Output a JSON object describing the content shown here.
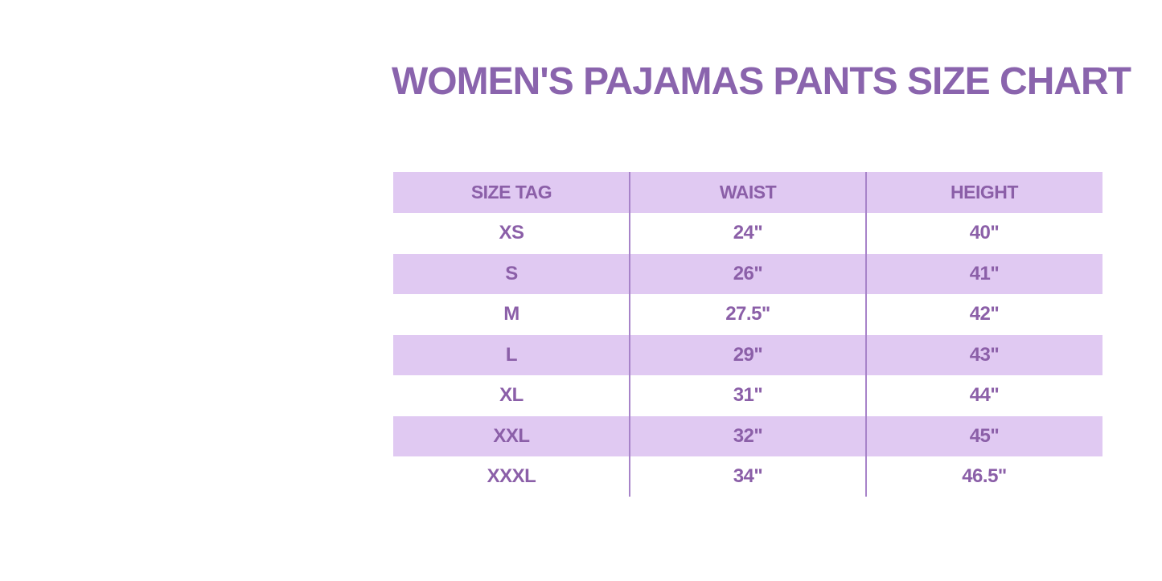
{
  "title": "WOMEN'S PAJAMAS PANTS SIZE CHART",
  "colors": {
    "title_purple": "#8a64ad",
    "cell_text_purple": "#8b5fa8",
    "row_lavender": "#e0c9f2",
    "divider_purple": "#a783c9",
    "background": "#ffffff"
  },
  "table": {
    "headers": [
      "SIZE TAG",
      "WAIST",
      "HEIGHT"
    ],
    "rows": [
      {
        "size": "XS",
        "waist": "24\"",
        "height": "40\""
      },
      {
        "size": "S",
        "waist": "26\"",
        "height": "41\""
      },
      {
        "size": "M",
        "waist": "27.5\"",
        "height": "42\""
      },
      {
        "size": "L",
        "waist": "29\"",
        "height": "43\""
      },
      {
        "size": "XL",
        "waist": "31\"",
        "height": "44\""
      },
      {
        "size": "XXL",
        "waist": "32\"",
        "height": "45\""
      },
      {
        "size": "XXXL",
        "waist": "34\"",
        "height": "46.5\""
      }
    ]
  },
  "chart_data": {
    "type": "table",
    "title": "WOMEN'S PAJAMAS PANTS SIZE CHART",
    "columns": [
      "SIZE TAG",
      "WAIST",
      "HEIGHT"
    ],
    "rows": [
      [
        "XS",
        "24\"",
        "40\""
      ],
      [
        "S",
        "26\"",
        "41\""
      ],
      [
        "M",
        "27.5\"",
        "42\""
      ],
      [
        "L",
        "29\"",
        "43\""
      ],
      [
        "XL",
        "31\"",
        "44\""
      ],
      [
        "XXL",
        "32\"",
        "45\""
      ],
      [
        "XXXL",
        "34\"",
        "46.5\""
      ]
    ],
    "layout": {
      "row_striping": "header and odd data rows lavender, even data rows white",
      "column_dividers": true,
      "horizontal_gridlines": false
    }
  }
}
